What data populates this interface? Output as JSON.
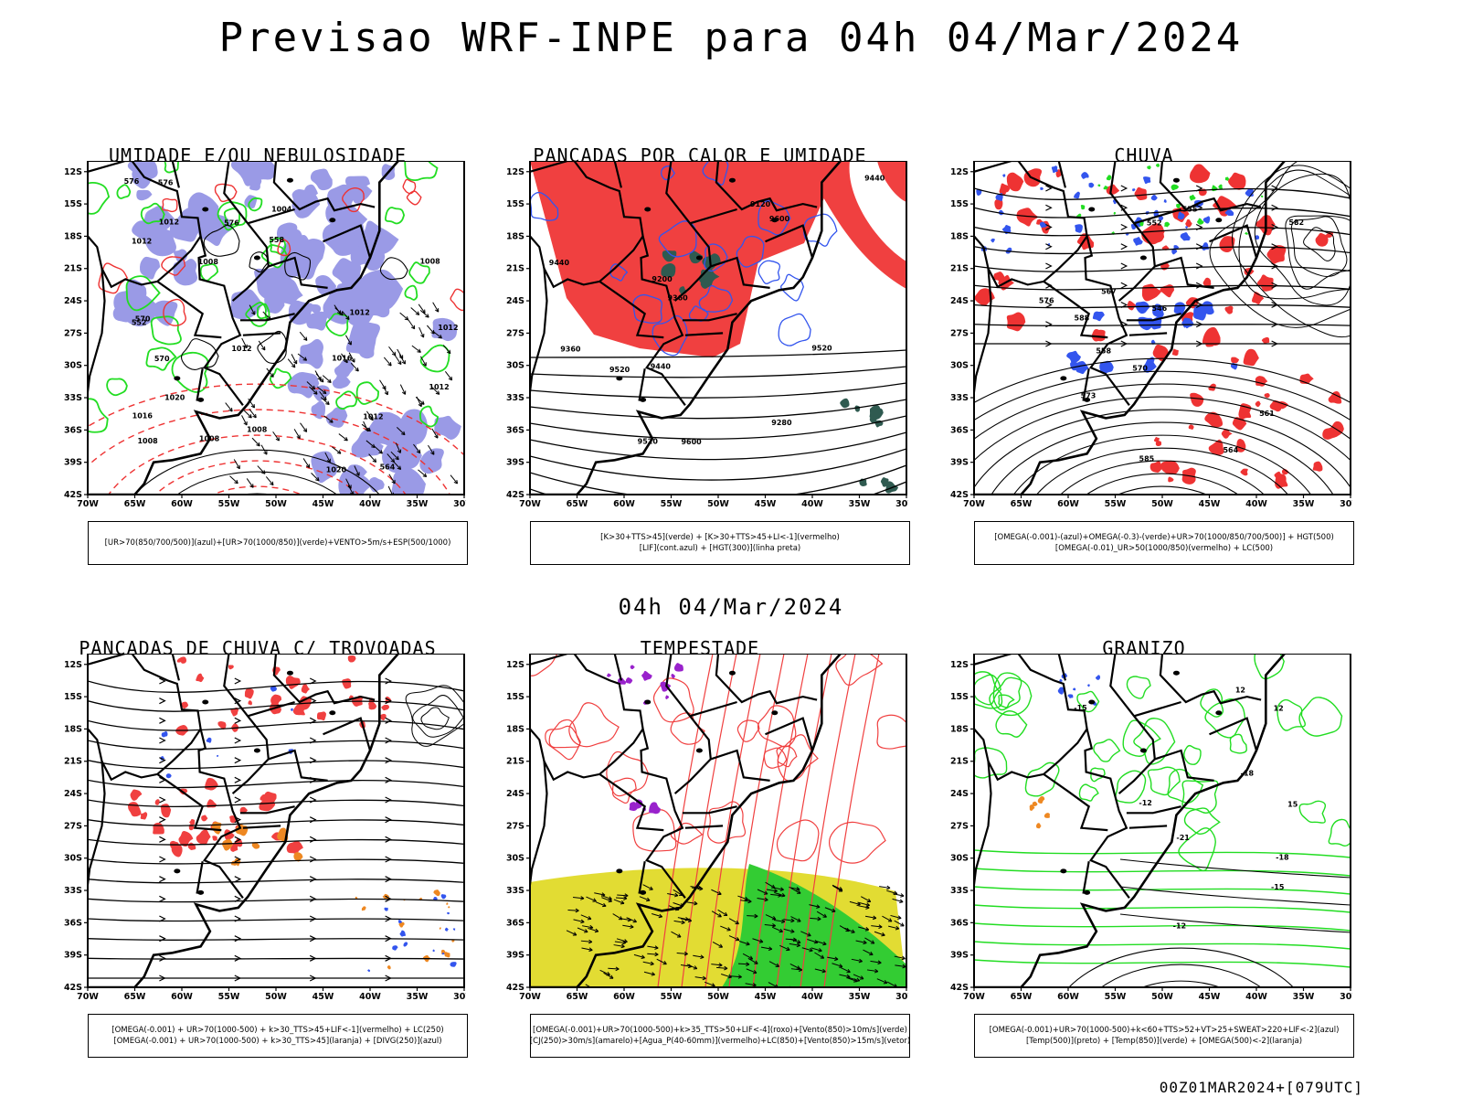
{
  "title": "Previsao WRF-INPE  para 04h 04/Mar/2024",
  "mid_title": "04h 04/Mar/2024",
  "footer": "00Z01MAR2024+[079UTC]",
  "axes": {
    "lat_labels": [
      "12S",
      "15S",
      "18S",
      "21S",
      "24S",
      "27S",
      "30S",
      "33S",
      "36S",
      "39S",
      "42S"
    ],
    "lon_labels": [
      "70W",
      "65W",
      "60W",
      "55W",
      "50W",
      "45W",
      "40W",
      "35W",
      "30W"
    ]
  },
  "panels": [
    {
      "title": "UMIDADE E/OU NEBULOSIDADE",
      "legend": [
        "[UR>70(850/700/500)](azul)+[UR>70(1000/850)](verde)+VENTO>5m/s+ESP(500/1000)"
      ],
      "labels": [
        "1012",
        "1012",
        "1012",
        "1008",
        "1008",
        "1008",
        "1012",
        "1016",
        "1020",
        "1016",
        "1012",
        "1012",
        "1008",
        "1008",
        "1004",
        "1012",
        "1020",
        "576",
        "576",
        "570",
        "564",
        "558",
        "552",
        "570",
        "576"
      ]
    },
    {
      "title": "PANCADAS POR CALOR E UMIDADE",
      "legend": [
        "[K>30+TTS>45](verde) + [K>30+TTS>45+LI<-1](vermelho)",
        "[LIF](cont.azul) + [HGT(300)](linha preta)"
      ],
      "labels": [
        "9600",
        "9600",
        "9520",
        "9520",
        "9440",
        "9440",
        "9360",
        "9360",
        "9280",
        "9200",
        "9120",
        "9520",
        "9440"
      ]
    },
    {
      "title": "CHUVA",
      "legend": [
        "[OMEGA(-0.001)-(azul)+OMEGA(-0.3)-(verde)+UR>70(1000/850/700/500)] + HGT(500)",
        "[OMEGA(-0.01)_UR>50(1000/850)(vermelho) + LC(500)"
      ],
      "labels": [
        "588",
        "582",
        "576",
        "570",
        "564",
        "561",
        "555",
        "552",
        "546",
        "558",
        "585",
        "573",
        "567"
      ]
    },
    {
      "title": "PANCADAS DE CHUVA C/ TROVOADAS",
      "legend": [
        "[OMEGA(-0.001) + UR>70(1000-500) + k>30_TTS>45+LIF<-1](vermelho) + LC(250)",
        "[OMEGA(-0.001) + UR>70(1000-500) + k>30_TTS>45](laranja) + [DIVG(250)](azul)"
      ],
      "labels": []
    },
    {
      "title": "TEMPESTADE",
      "legend": [
        "[OMEGA(-0.001)+UR>70(1000-500)+k>35_TTS>50+LIF<-4](roxo)+[Vento(850)>10m/s](verde)",
        "[CJ(250)>30m/s](amarelo)+[Agua_P(40-60mm)](vermelho)+LC(850)+[Vento(850)>15m/s](vetor)"
      ],
      "labels": []
    },
    {
      "title": "GRANIZO",
      "legend": [
        "[OMEGA(-0.001)+UR>70(1000-500)+k<60+TTS>52+VT>25+SWEAT>220+LIF<-2](azul)",
        "[Temp(500)](preto) + [Temp(850)](verde) + [OMEGA(500)<-2](laranja)"
      ],
      "labels": [
        "-12",
        "-12",
        "12",
        "12",
        "-15",
        "-15",
        "-18",
        "-18",
        "-21",
        "15"
      ]
    }
  ],
  "colors": {
    "humidity_blue": "#9a9ae6",
    "humidity_green": "#22dd22",
    "thickness_red": "#ee3333",
    "heat_red": "#f04040",
    "heat_teal": "#2f5a50",
    "lif_blue": "#3355ee",
    "storm_purple": "#9922cc",
    "storm_yellow": "#e2dc33",
    "storm_green": "#33cc33",
    "orange": "#ee8822"
  }
}
